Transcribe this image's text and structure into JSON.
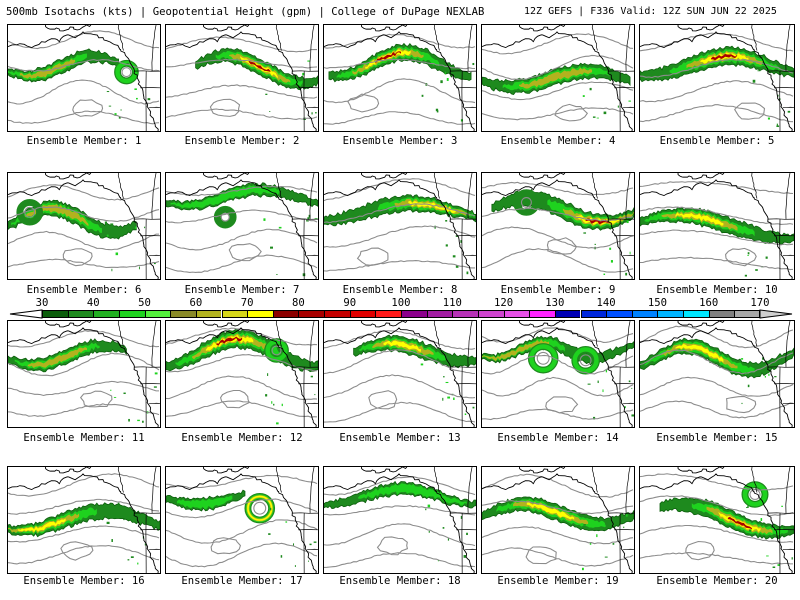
{
  "header": {
    "title_left": "500mb Isotachs (kts) | Geopotential Height (gpm) | College of DuPage NEXLAB",
    "title_right": "12Z GEFS | F336 Valid: 12Z SUN JUN 22 2025"
  },
  "members": [
    {
      "caption": "Ensemble Member: 1"
    },
    {
      "caption": "Ensemble Member: 2"
    },
    {
      "caption": "Ensemble Member: 3"
    },
    {
      "caption": "Ensemble Member: 4"
    },
    {
      "caption": "Ensemble Member: 5"
    },
    {
      "caption": "Ensemble Member: 6"
    },
    {
      "caption": "Ensemble Member: 7"
    },
    {
      "caption": "Ensemble Member: 8"
    },
    {
      "caption": "Ensemble Member: 9"
    },
    {
      "caption": "Ensemble Member: 10"
    },
    {
      "caption": "Ensemble Member: 11"
    },
    {
      "caption": "Ensemble Member: 12"
    },
    {
      "caption": "Ensemble Member: 13"
    },
    {
      "caption": "Ensemble Member: 14"
    },
    {
      "caption": "Ensemble Member: 15"
    },
    {
      "caption": "Ensemble Member: 16"
    },
    {
      "caption": "Ensemble Member: 17"
    },
    {
      "caption": "Ensemble Member: 18"
    },
    {
      "caption": "Ensemble Member: 19"
    },
    {
      "caption": "Ensemble Member: 20"
    }
  ],
  "colorbar": {
    "ticks": [
      30,
      40,
      50,
      60,
      70,
      80,
      90,
      100,
      110,
      120,
      130,
      140,
      150,
      160,
      170
    ],
    "colors": [
      "#0b5d0b",
      "#1e8a1e",
      "#22b022",
      "#1ed21e",
      "#54f03c",
      "#8a8a28",
      "#b2b21e",
      "#d6d61a",
      "#ffff00",
      "#8b0000",
      "#a80000",
      "#c40000",
      "#e00000",
      "#ff1a1a",
      "#8b008b",
      "#a21ca2",
      "#b832b8",
      "#cf44cf",
      "#e650e6",
      "#ff24ff",
      "#0000b4",
      "#0028dc",
      "#0050ff",
      "#0082ff",
      "#00b4ff",
      "#00e6ff",
      "#808080",
      "#a8a8a8"
    ],
    "arrow_left_color": "#ffffff",
    "arrow_right_color": "#cfcfcf"
  },
  "map_colors": {
    "background": "#ffffff",
    "height_contour": "#8c8c8c",
    "coastline": "#000000",
    "isotach_outline": "#0b5d0b"
  }
}
